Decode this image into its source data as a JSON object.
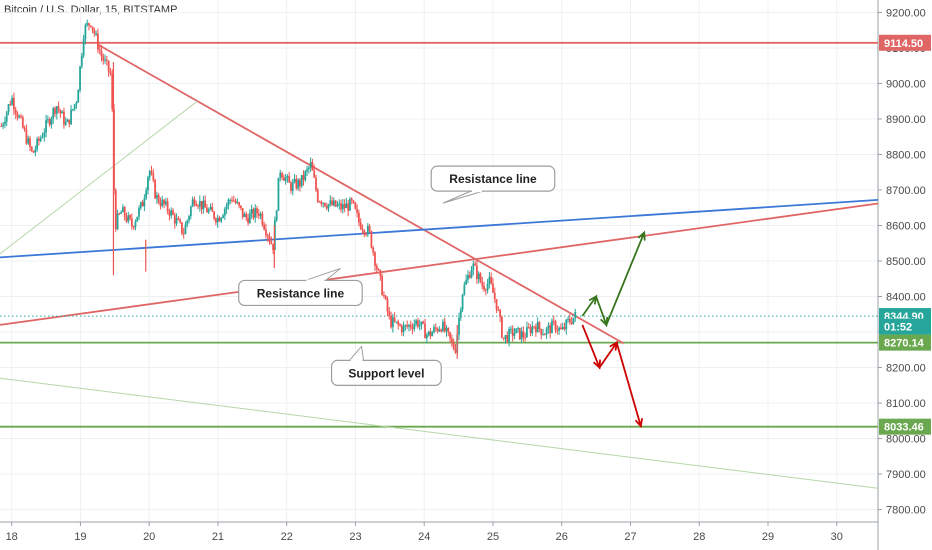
{
  "chart_data": {
    "type": "candlestick",
    "title": "Bitcoin / U.S. Dollar, 15, BITSTAMP",
    "x_ticks": [
      "18",
      "19",
      "20",
      "21",
      "22",
      "23",
      "24",
      "25",
      "26",
      "27",
      "28",
      "29",
      "30"
    ],
    "x_tick_values": [
      18,
      19,
      20,
      21,
      22,
      23,
      24,
      25,
      26,
      27,
      28,
      29,
      30
    ],
    "y_ticks": [
      "9200.00",
      "9100.00",
      "9000.00",
      "8900.00",
      "8800.00",
      "8700.00",
      "8600.00",
      "8500.00",
      "8400.00",
      "8300.00",
      "8200.00",
      "8100.00",
      "8000.00",
      "7900.00",
      "7800.00"
    ],
    "y_tick_values": [
      9200,
      9100,
      9000,
      8900,
      8800,
      8700,
      8600,
      8500,
      8400,
      8300,
      8200,
      8100,
      8000,
      7900,
      7800
    ],
    "xlim": [
      17.83,
      30.6
    ],
    "ylim": [
      7765,
      9235
    ],
    "price_path": [
      [
        17.85,
        8880
      ],
      [
        18.0,
        8960
      ],
      [
        18.15,
        8880
      ],
      [
        18.3,
        8800
      ],
      [
        18.5,
        8880
      ],
      [
        18.65,
        8940
      ],
      [
        18.8,
        8880
      ],
      [
        18.95,
        8960
      ],
      [
        19.05,
        9150
      ],
      [
        19.15,
        9175
      ],
      [
        19.3,
        9080
      ],
      [
        19.45,
        9020
      ],
      [
        19.5,
        8600
      ],
      [
        19.6,
        8640
      ],
      [
        19.75,
        8600
      ],
      [
        19.9,
        8660
      ],
      [
        20.0,
        8760
      ],
      [
        20.1,
        8680
      ],
      [
        20.3,
        8640
      ],
      [
        20.5,
        8580
      ],
      [
        20.65,
        8680
      ],
      [
        20.8,
        8650
      ],
      [
        21.0,
        8620
      ],
      [
        21.2,
        8680
      ],
      [
        21.4,
        8620
      ],
      [
        21.6,
        8640
      ],
      [
        21.8,
        8540
      ],
      [
        21.9,
        8760
      ],
      [
        22.05,
        8710
      ],
      [
        22.2,
        8720
      ],
      [
        22.35,
        8770
      ],
      [
        22.45,
        8680
      ],
      [
        22.6,
        8660
      ],
      [
        22.8,
        8650
      ],
      [
        22.95,
        8660
      ],
      [
        23.05,
        8610
      ],
      [
        23.2,
        8580
      ],
      [
        23.3,
        8490
      ],
      [
        23.4,
        8410
      ],
      [
        23.5,
        8330
      ],
      [
        23.7,
        8310
      ],
      [
        23.9,
        8330
      ],
      [
        24.05,
        8290
      ],
      [
        24.25,
        8320
      ],
      [
        24.45,
        8250
      ],
      [
        24.55,
        8410
      ],
      [
        24.7,
        8490
      ],
      [
        24.85,
        8430
      ],
      [
        24.95,
        8440
      ],
      [
        25.05,
        8380
      ],
      [
        25.15,
        8280
      ],
      [
        25.3,
        8300
      ],
      [
        25.45,
        8290
      ],
      [
        25.6,
        8320
      ],
      [
        25.75,
        8300
      ],
      [
        25.9,
        8320
      ],
      [
        26.0,
        8300
      ],
      [
        26.1,
        8330
      ],
      [
        26.2,
        8345
      ]
    ],
    "drops": [
      {
        "x": 19.48,
        "high": 9060,
        "low": 8460
      },
      {
        "x": 19.95,
        "high": 8560,
        "low": 8470
      },
      {
        "x": 21.82,
        "high": 8600,
        "low": 8480
      },
      {
        "x": 24.48,
        "high": 8320,
        "low": 8225
      }
    ],
    "trend_lines": [
      {
        "name": "horizontal-resistance",
        "color": "#e06666",
        "points": [
          [
            17.83,
            9114.5
          ],
          [
            30.6,
            9114.5
          ]
        ]
      },
      {
        "name": "upper-support",
        "color": "#6aa84f",
        "points": [
          [
            17.83,
            8270.14
          ],
          [
            30.6,
            8270.14
          ]
        ]
      },
      {
        "name": "lower-support",
        "color": "#6aa84f",
        "points": [
          [
            17.83,
            8033.46
          ],
          [
            30.6,
            8033.46
          ]
        ]
      },
      {
        "name": "falling-resistance",
        "color": "#e06666",
        "points": [
          [
            19.25,
            9110
          ],
          [
            26.9,
            8268
          ]
        ]
      },
      {
        "name": "rising-resistance",
        "color": "#e06666",
        "points": [
          [
            17.83,
            8320
          ],
          [
            30.6,
            8662
          ]
        ]
      },
      {
        "name": "blue-trend",
        "color": "#3c78d8",
        "points": [
          [
            17.83,
            8510
          ],
          [
            30.6,
            8672
          ]
        ]
      },
      {
        "name": "thin-rising",
        "color": "#b6d7a8",
        "points": [
          [
            17.83,
            8520
          ],
          [
            20.7,
            8950
          ]
        ]
      },
      {
        "name": "thin-falling",
        "color": "#b6d7a8",
        "points": [
          [
            17.83,
            8170
          ],
          [
            30.6,
            7860
          ]
        ]
      }
    ],
    "projections": [
      {
        "name": "bullish-path",
        "color": "#38761d",
        "points": [
          [
            26.3,
            8345
          ],
          [
            26.5,
            8400
          ],
          [
            26.65,
            8320
          ],
          [
            27.2,
            8580
          ]
        ]
      },
      {
        "name": "bearish-path",
        "color": "#cc0000",
        "points": [
          [
            26.3,
            8320
          ],
          [
            26.55,
            8200
          ],
          [
            26.8,
            8270
          ],
          [
            27.15,
            8035
          ]
        ]
      }
    ],
    "price_labels": [
      {
        "text": "9114.50",
        "value": 9114.5,
        "color": "#e06666"
      },
      {
        "text": "8344.90",
        "value": 8344.9,
        "color": "#26a69a"
      },
      {
        "text": "01:52",
        "value": 8315,
        "color": "#26a69a"
      },
      {
        "text": "8270.14",
        "value": 8270.14,
        "color": "#6aa84f"
      },
      {
        "text": "8033.46",
        "value": 8033.46,
        "color": "#6aa84f"
      }
    ],
    "last_price": 8344.9,
    "annotations": [
      {
        "text": "Resistance line",
        "x": 25.0,
        "y": 8732
      },
      {
        "text": "Resistance line",
        "x": 22.2,
        "y": 8410
      },
      {
        "text": "Support level",
        "x": 23.45,
        "y": 8185
      }
    ]
  }
}
